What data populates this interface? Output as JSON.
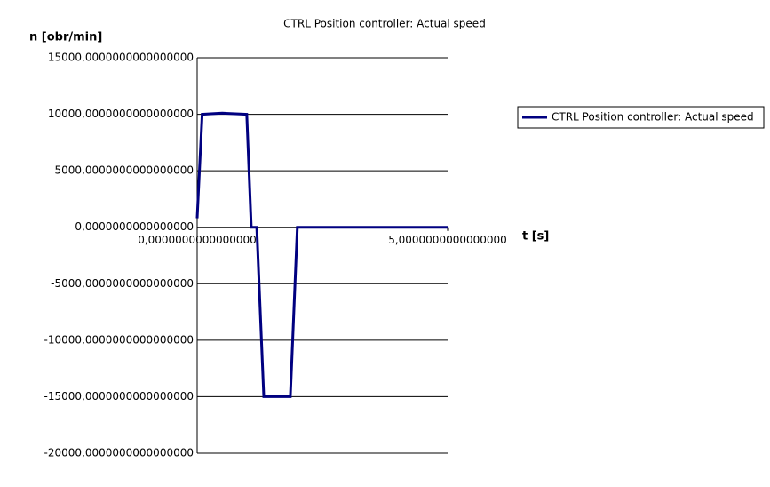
{
  "chart_data": {
    "type": "line",
    "title": "CTRL Position controller: Actual speed",
    "x_label": "t [s]",
    "y_label": "n [obr/min]",
    "x": [
      0,
      0.1,
      0.5,
      0.99,
      1.08,
      1.19,
      1.33,
      1.6,
      1.86,
      2.0,
      3.5,
      5
    ],
    "series": [
      {
        "name": "CTRL Position controller: Actual speed",
        "color": "#000080",
        "values": [
          800,
          10000,
          10100,
          10000,
          0,
          0,
          -15000,
          -15000,
          -15000,
          0,
          0,
          0
        ]
      }
    ],
    "xlim": [
      0,
      5
    ],
    "xticks": [
      {
        "value": 0,
        "label": "0,0000000000000000"
      },
      {
        "value": 5,
        "label": "5,0000000000000000"
      }
    ],
    "ylim": [
      -20000,
      15000
    ],
    "yticks": [
      {
        "value": -20000,
        "label": "-20000,0000000000000000"
      },
      {
        "value": -15000,
        "label": "-15000,0000000000000000"
      },
      {
        "value": -10000,
        "label": "-10000,0000000000000000"
      },
      {
        "value": -5000,
        "label": "-5000,0000000000000000"
      },
      {
        "value": 0,
        "label": "0,0000000000000000"
      },
      {
        "value": 5000,
        "label": "5000,0000000000000000"
      },
      {
        "value": 10000,
        "label": "10000,0000000000000000"
      },
      {
        "value": 15000,
        "label": "15000,0000000000000000"
      }
    ],
    "grid": true,
    "legend": "right"
  }
}
